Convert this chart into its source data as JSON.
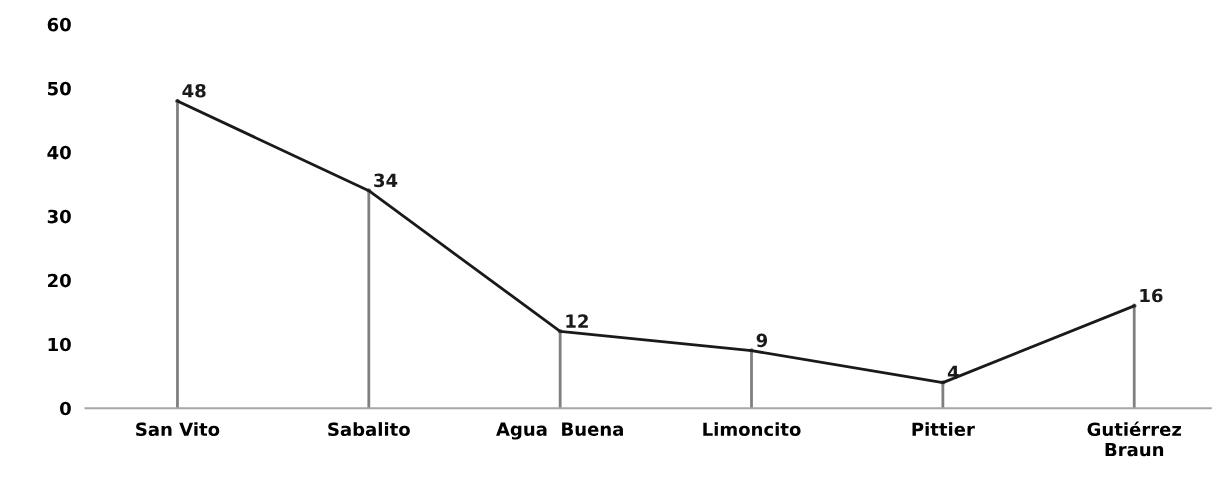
{
  "chart_data": {
    "type": "line",
    "categories": [
      "San Vito",
      "Sabalito",
      "Agua  Buena",
      "Limoncito",
      "Pittier",
      "Gutiérrez\nBraun"
    ],
    "series": [
      {
        "color": "#1a1a1a",
        "values": [
          48,
          34,
          12,
          9,
          4,
          16
        ]
      },
      {
        "type": "lollipop",
        "color": "#7f7f7f",
        "values": [
          48,
          34,
          12,
          9,
          4,
          16
        ],
        "value_labels": [
          "48",
          "34",
          "12",
          "9",
          "4",
          "16"
        ]
      }
    ],
    "ylim": [
      0,
      60
    ],
    "yticks": [
      0,
      10,
      20,
      30,
      40,
      50,
      60
    ],
    "marker": "none",
    "line_style": "solid"
  }
}
